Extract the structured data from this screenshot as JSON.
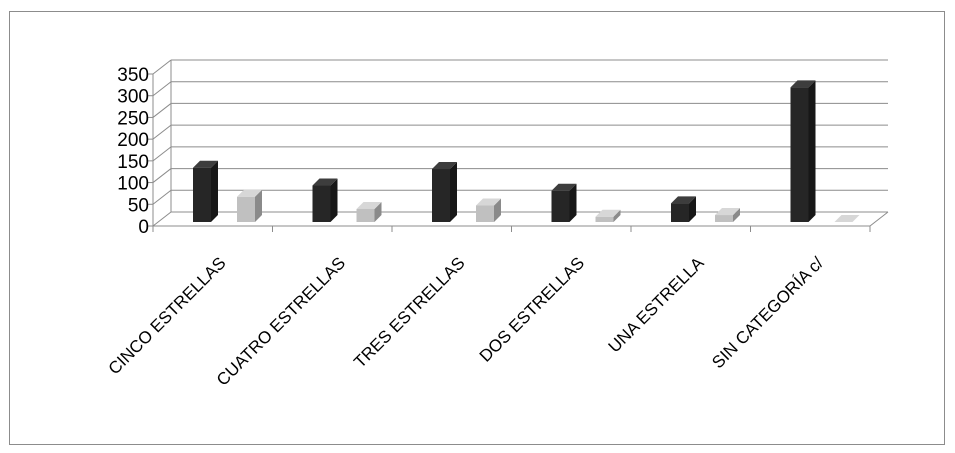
{
  "chart_data": {
    "type": "bar",
    "categories": [
      "CINCO ESTRELLAS",
      "CUATRO ESTRELLAS",
      "TRES ESTRELLAS",
      "DOS ESTRELLAS",
      "UNA ESTRELLA",
      "SIN CATEGORÍA c/"
    ],
    "series": [
      {
        "values": [
          125,
          84,
          122,
          72,
          43,
          310
        ],
        "color": "#262626"
      },
      {
        "values": [
          58,
          30,
          38,
          12,
          16,
          0
        ],
        "color": "#c0c0c0"
      }
    ],
    "y_ticks": [
      "0",
      "50",
      "100",
      "150",
      "200",
      "250",
      "300",
      "350"
    ],
    "ylim": [
      0,
      350
    ],
    "grid": true,
    "style": "3d-column",
    "title": "",
    "xlabel": "",
    "ylabel": ""
  }
}
